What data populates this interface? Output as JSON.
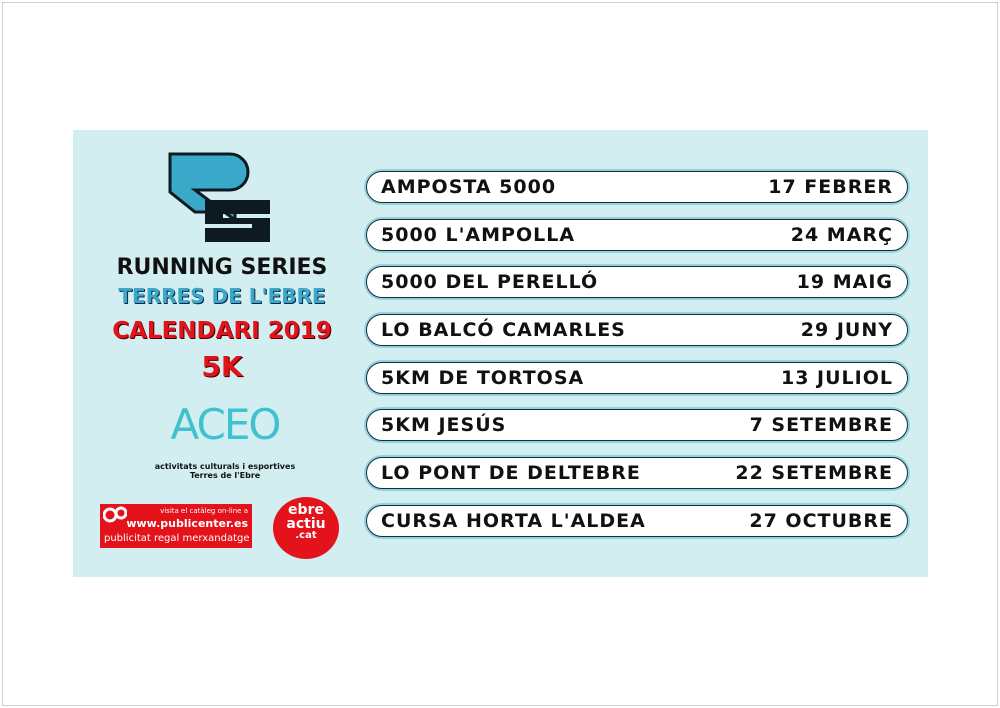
{
  "header": {
    "logo_text": "RS",
    "title": "RUNNING SERIES",
    "subtitle": "TERRES DE L'EBRE",
    "calendar": "CALENDARI 2019",
    "distance": "5K"
  },
  "sponsors": {
    "aceo": {
      "logo_text": "ACEO",
      "line1": "activitats culturals i esportives",
      "line2": "Terres de l'Ebre"
    },
    "publicenter": {
      "line1": "visita el catàleg on-line a",
      "line2": "www.publicenter.es",
      "line3": "publicitat regal merxandatge"
    },
    "ebreactiu": {
      "line1": "ebre",
      "line2": "actiu",
      "line3": ".cat"
    }
  },
  "races": [
    {
      "name": "AMPOSTA 5000",
      "date": "17 FEBRER"
    },
    {
      "name": "5000 L'AMPOLLA",
      "date": "24 MARÇ"
    },
    {
      "name": "5000 DEL PERELLÓ",
      "date": "19 MAIG"
    },
    {
      "name": "LO BALCÓ CAMARLES",
      "date": "29 JUNY"
    },
    {
      "name": "5KM DE TORTOSA",
      "date": "13 JULIOL"
    },
    {
      "name": "5KM JESÚS",
      "date": "7 SETEMBRE"
    },
    {
      "name": "LO PONT DE DELTEBRE",
      "date": "22 SETEMBRE"
    },
    {
      "name": "CURSA HORTA L'ALDEA",
      "date": "27 OCTUBRE"
    }
  ],
  "colors": {
    "panel": "#d2eef1",
    "accent_blue": "#3aa9c9",
    "red": "#e3121b"
  }
}
